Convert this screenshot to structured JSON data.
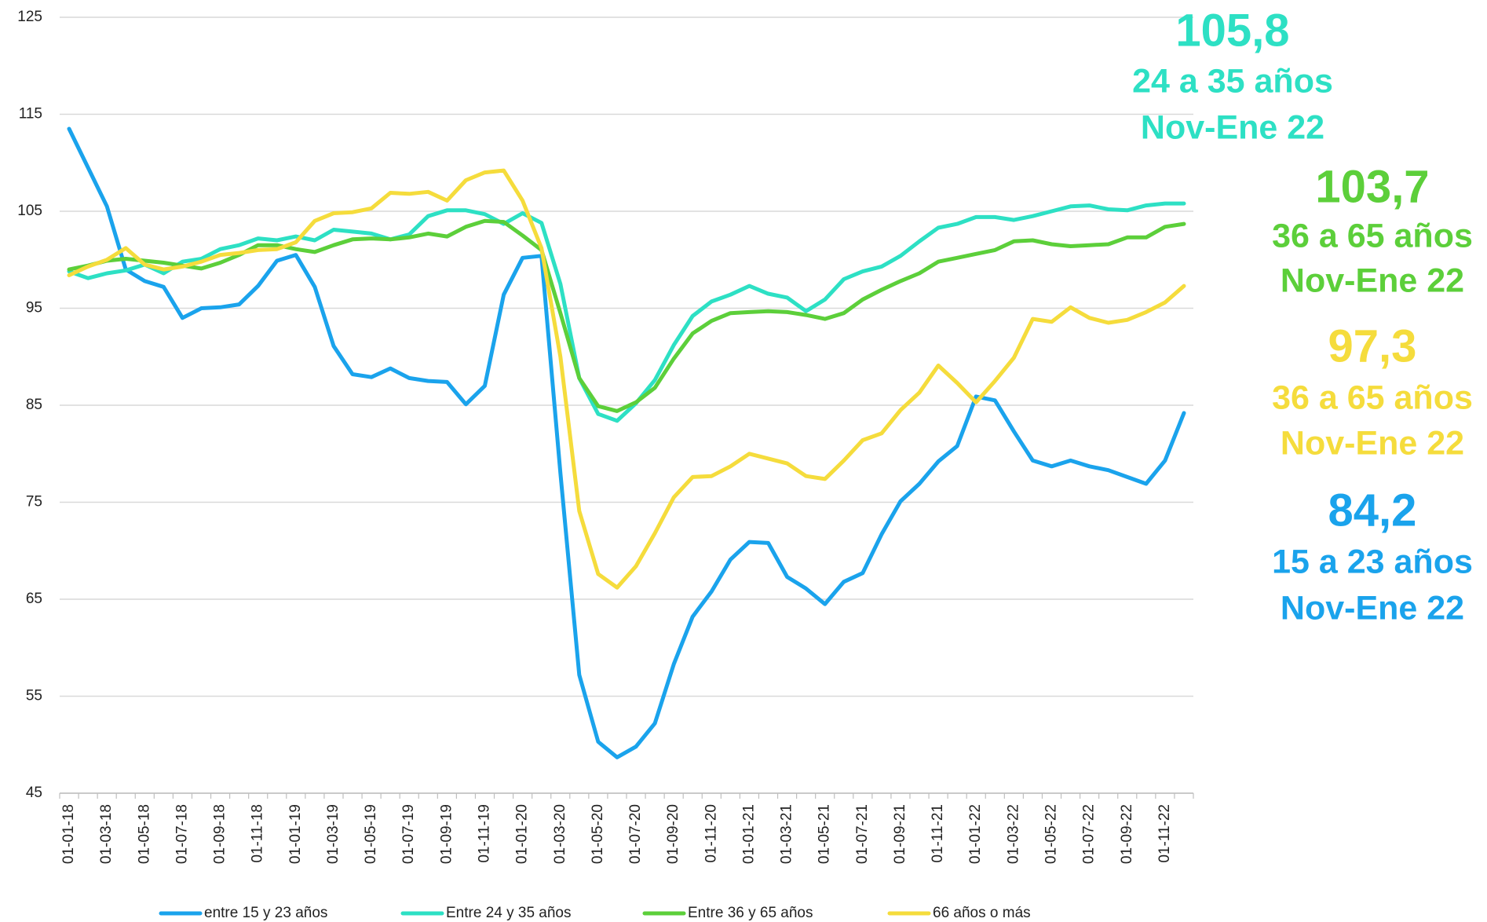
{
  "chart_data": {
    "type": "line",
    "categories": [
      "01-01-18",
      null,
      "01-03-18",
      null,
      "01-05-18",
      null,
      "01-07-18",
      null,
      "01-09-18",
      null,
      "01-11-18",
      null,
      "01-01-19",
      null,
      "01-03-19",
      null,
      "01-05-19",
      null,
      "01-07-19",
      null,
      "01-09-19",
      null,
      "01-11-19",
      null,
      "01-01-20",
      null,
      "01-03-20",
      null,
      "01-05-20",
      null,
      "01-07-20",
      null,
      "01-09-20",
      null,
      "01-11-20",
      null,
      "01-01-21",
      null,
      "01-03-21",
      null,
      "01-05-21",
      null,
      "01-07-21",
      null,
      "01-09-21",
      null,
      "01-11-21",
      null,
      "01-01-22",
      null,
      "01-03-22",
      null,
      "01-05-22",
      null,
      "01-07-22",
      null,
      "01-09-22",
      null,
      "01-11-22",
      null
    ],
    "series": [
      {
        "name": "entre 15 y 23 años",
        "color": "#1aa3ec",
        "values": [
          113.5,
          109.5,
          105.5,
          99,
          97.8,
          97.2,
          94,
          95,
          95.1,
          95.4,
          97.3,
          99.9,
          100.5,
          97.2,
          91.1,
          88.2,
          87.9,
          88.8,
          87.8,
          87.5,
          87.4,
          85.1,
          87,
          96.4,
          100.2,
          100.4,
          78,
          57.2,
          50.3,
          48.7,
          49.8,
          52.2,
          58.3,
          63.2,
          65.8,
          69.1,
          70.9,
          70.8,
          67.3,
          66.1,
          64.5,
          66.8,
          67.7,
          71.7,
          75.1,
          76.9,
          79.2,
          80.8,
          85.9,
          85.5,
          82.3,
          79.3,
          78.7,
          79.3,
          78.7,
          78.3,
          77.6,
          76.9,
          79.3,
          84.2
        ]
      },
      {
        "name": "Entre 24 y 35 años",
        "color": "#2de0c4",
        "values": [
          98.8,
          98.1,
          98.6,
          98.9,
          99.5,
          98.6,
          99.8,
          100.1,
          101.1,
          101.5,
          102.2,
          102.0,
          102.4,
          102.0,
          103.1,
          102.9,
          102.7,
          102.1,
          102.6,
          104.5,
          105.1,
          105.1,
          104.7,
          103.7,
          104.8,
          103.8,
          97.5,
          87.8,
          84.1,
          83.4,
          85.2,
          87.6,
          91.2,
          94.2,
          95.7,
          96.4,
          97.3,
          96.5,
          96.1,
          94.7,
          95.9,
          98,
          98.8,
          99.3,
          100.4,
          101.9,
          103.3,
          103.7,
          104.4,
          104.4,
          104.1,
          104.5,
          105,
          105.5,
          105.6,
          105.2,
          105.1,
          105.6,
          105.8,
          105.8
        ]
      },
      {
        "name": "Entre 36 y 65 años",
        "color": "#5ccf3a",
        "values": [
          99.0,
          99.4,
          99.9,
          100.1,
          99.9,
          99.7,
          99.4,
          99.1,
          99.7,
          100.5,
          101.5,
          101.5,
          101.1,
          100.8,
          101.5,
          102.1,
          102.2,
          102.1,
          102.3,
          102.7,
          102.4,
          103.4,
          104.0,
          103.9,
          102.5,
          101,
          94.5,
          87.8,
          84.9,
          84.4,
          85.3,
          86.8,
          89.8,
          92.4,
          93.7,
          94.5,
          94.6,
          94.7,
          94.6,
          94.3,
          93.9,
          94.5,
          95.9,
          96.9,
          97.8,
          98.6,
          99.8,
          100.2,
          100.6,
          101.0,
          101.9,
          102.0,
          101.6,
          101.4,
          101.5,
          101.6,
          102.3,
          102.3,
          103.4,
          103.7
        ]
      },
      {
        "name": "66 años o más",
        "color": "#f5dc3c",
        "values": [
          98.4,
          99.3,
          100,
          101.2,
          99.5,
          99.0,
          99.3,
          99.8,
          100.5,
          100.7,
          101.0,
          101.1,
          101.8,
          104,
          104.8,
          104.9,
          105.3,
          106.9,
          106.8,
          107.0,
          106.1,
          108.2,
          109.0,
          109.2,
          106.1,
          101.2,
          90,
          74.1,
          67.6,
          66.2,
          68.4,
          71.8,
          75.5,
          77.6,
          77.7,
          78.7,
          80,
          79.5,
          79,
          77.7,
          77.4,
          79.3,
          81.4,
          82.1,
          84.5,
          86.3,
          89.1,
          87.3,
          85.3,
          87.5,
          89.9,
          93.9,
          93.6,
          95.1,
          94.0,
          93.5,
          93.8,
          94.6,
          95.6,
          97.3
        ]
      }
    ],
    "ylim": [
      45,
      125
    ],
    "yticks": [
      45,
      55,
      65,
      75,
      85,
      95,
      105,
      115,
      125
    ],
    "grid": true,
    "legend": "bottom",
    "annotations": [
      {
        "value": "105,8",
        "label": "24 a 35 años",
        "period": "Nov-Ene 22",
        "color": "#2de0c4"
      },
      {
        "value": "103,7",
        "label": "36 a 65 años",
        "period": "Nov-Ene 22",
        "color": "#5ccf3a"
      },
      {
        "value": "97,3",
        "label": "36 a 65 años",
        "period": "Nov-Ene 22",
        "color": "#f5dc3c"
      },
      {
        "value": "84,2",
        "label": "15 a 23 años",
        "period": "Nov-Ene 22",
        "color": "#1aa3ec"
      }
    ]
  }
}
